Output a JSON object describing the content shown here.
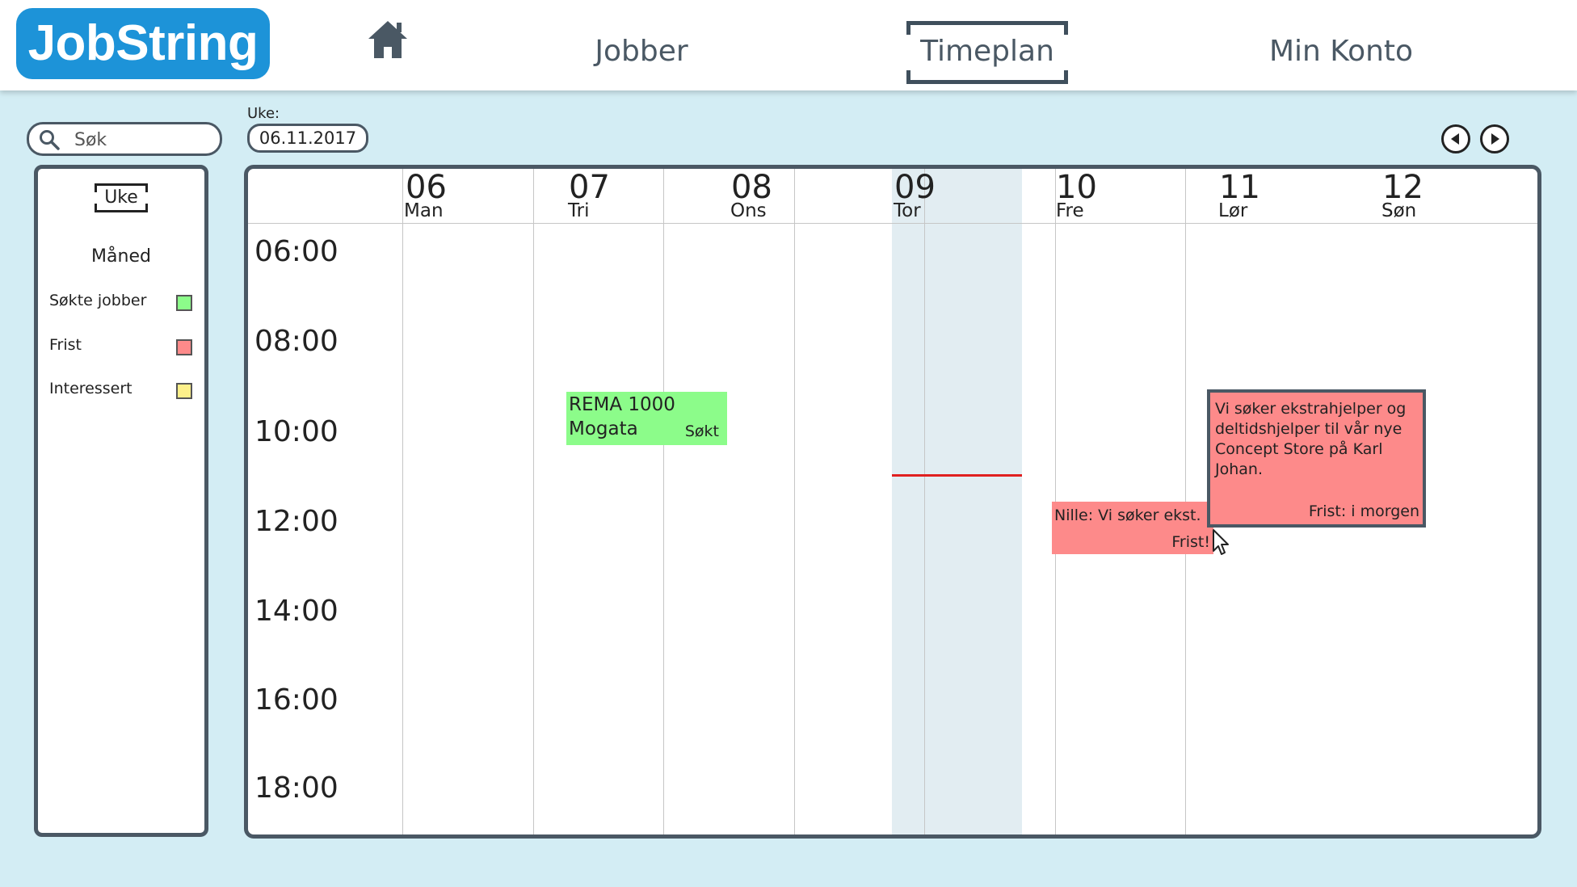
{
  "app": {
    "logo": "JobString"
  },
  "nav": {
    "items": [
      "Jobber",
      "Timeplan",
      "Min Konto"
    ],
    "active": "Timeplan"
  },
  "search": {
    "placeholder": "Søk",
    "value": ""
  },
  "sidebar": {
    "views": [
      "Uke",
      "Måned"
    ],
    "active_view": "Uke",
    "legend": [
      {
        "label": "Søkte jobber",
        "color": "#8cfc8a"
      },
      {
        "label": "Frist",
        "color": "#fd8a8a"
      },
      {
        "label": "Interessert",
        "color": "#fdf08a"
      }
    ]
  },
  "week": {
    "label": "Uke:",
    "value": "06.11.2017"
  },
  "calendar": {
    "days": [
      {
        "num": "06",
        "name": "Man"
      },
      {
        "num": "07",
        "name": "Tri"
      },
      {
        "num": "08",
        "name": "Ons"
      },
      {
        "num": "09",
        "name": "Tor"
      },
      {
        "num": "10",
        "name": "Fre"
      },
      {
        "num": "11",
        "name": "Lør"
      },
      {
        "num": "12",
        "name": "Søn"
      }
    ],
    "today": "09",
    "times": [
      "06:00",
      "08:00",
      "10:00",
      "12:00",
      "14:00",
      "16:00",
      "18:00"
    ],
    "events": {
      "rema": {
        "line1": "REMA 1000",
        "line2": "Mogata",
        "status": "Søkt",
        "color": "#8cfc8a"
      },
      "nille": {
        "title": "Nille: Vi søker ekst.",
        "status": "Frist!",
        "color": "#fd8a8a"
      },
      "popup": {
        "description": "Vi søker ekstrahjelper og deltidshjelper til vår nye Concept Store på Karl Johan.",
        "status": "Frist: i morgen",
        "color": "#fd8a8a"
      }
    }
  },
  "colors": {
    "background": "#d3edf4",
    "logo": "#1d93d8",
    "border": "#4a5864",
    "now_line": "#e02020"
  }
}
